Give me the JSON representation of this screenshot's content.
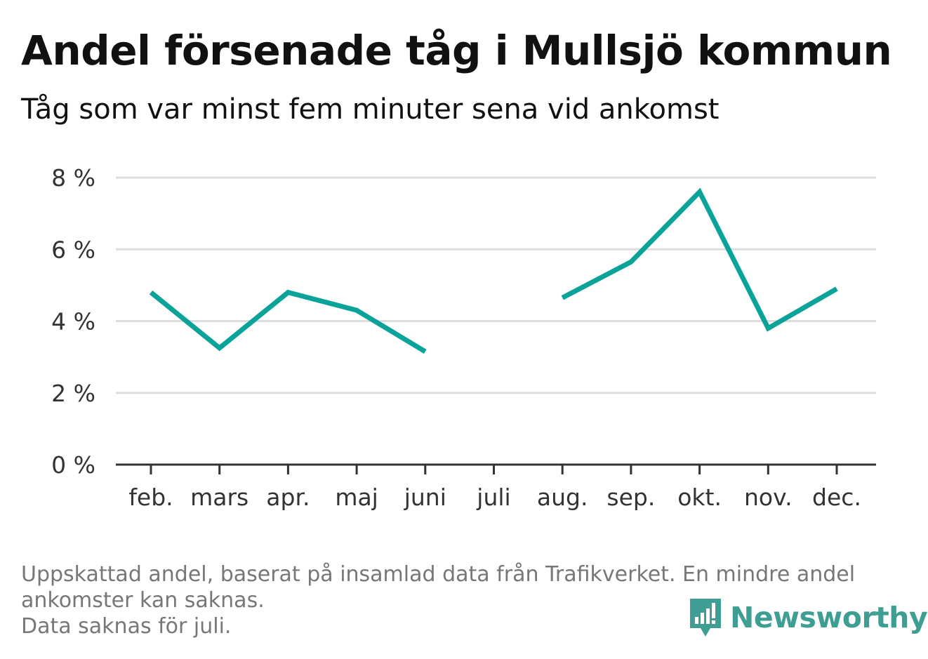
{
  "title": "Andel försenade tåg i Mullsjö kommun",
  "subtitle": "Tåg som var minst fem minuter sena vid ankomst",
  "footnote": {
    "line1": "Uppskattad andel, baserat på insamlad data från Trafikverket. En mindre andel",
    "line2": "ankomster kan saknas.",
    "line3": "Data saknas för juli."
  },
  "brand": {
    "name": "Newsworthy",
    "icon": "newsworthy-logo-icon",
    "color": "#3f9e94"
  },
  "colors": {
    "line": "#0aa39a",
    "grid": "#dddddd",
    "axis": "#333333"
  },
  "chart_data": {
    "type": "line",
    "categories": [
      "feb.",
      "mars",
      "apr.",
      "maj",
      "juni",
      "juli",
      "aug.",
      "sep.",
      "okt.",
      "nov.",
      "dec."
    ],
    "values": [
      4.8,
      3.25,
      4.8,
      4.3,
      3.15,
      null,
      4.65,
      5.65,
      7.6,
      3.8,
      4.9
    ],
    "ylim": [
      0,
      8
    ],
    "yticks": [
      0,
      2,
      4,
      6,
      8
    ],
    "ytick_labels": [
      "0 %",
      "2 %",
      "4 %",
      "6 %",
      "8 %"
    ],
    "grid": true,
    "legend": "none"
  }
}
